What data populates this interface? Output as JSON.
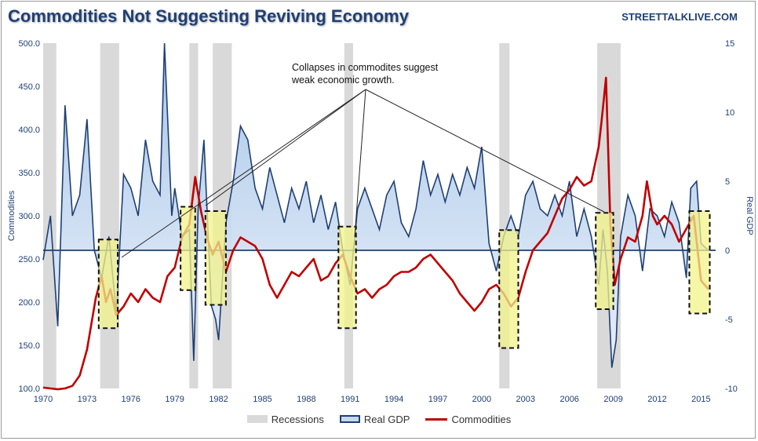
{
  "title": "Commodities Not Suggesting Reviving Economy",
  "source": "STREETTALKLIVE.COM",
  "annotation": {
    "line1": "Collapses in commodites suggest",
    "line2": "weak economic growth."
  },
  "legend": {
    "recessions": "Recessions",
    "real_gdp": "Real GDP",
    "commodities": "Commodities"
  },
  "colors": {
    "recession": "#d9d9d9",
    "gdp_line": "#1f3f73",
    "gdp_fill": "#c6d9ef",
    "commodities": "#c00000",
    "highlight_fill": "#f3f38a",
    "highlight_line": "#e0a800",
    "axis_text": "#1f3f73"
  },
  "chart_data": {
    "type": "line",
    "title": "Commodities Not Suggesting Reviving Economy",
    "xlabel": "",
    "ylabel_left": "Commodities",
    "ylabel_right": "Real GDP",
    "x_range": [
      1970,
      2016
    ],
    "y_left_range": [
      100,
      500
    ],
    "y_right_range": [
      -10,
      15
    ],
    "x_ticks": [
      "1970",
      "1973",
      "1976",
      "1979",
      "1982",
      "1985",
      "1988",
      "1991",
      "1994",
      "1997",
      "2000",
      "2003",
      "2006",
      "2009",
      "2012",
      "2015"
    ],
    "y_left_ticks": [
      "100.0",
      "150.0",
      "200.0",
      "250.0",
      "300.0",
      "350.0",
      "400.0",
      "450.0",
      "500.0"
    ],
    "y_right_ticks": [
      "-10",
      "-5",
      "0",
      "5",
      "10",
      "15"
    ],
    "recessions": [
      [
        1970.0,
        1970.9
      ],
      [
        1973.9,
        1975.2
      ],
      [
        1980.0,
        1980.6
      ],
      [
        1981.6,
        1982.9
      ],
      [
        1990.6,
        1991.2
      ],
      [
        2001.2,
        2001.9
      ],
      [
        2007.9,
        2009.5
      ]
    ],
    "highlight_periods": [
      [
        1973.8,
        1975.1
      ],
      [
        1979.4,
        1980.4
      ],
      [
        1981.1,
        1982.5
      ],
      [
        1990.2,
        1991.4
      ],
      [
        2001.2,
        2002.5
      ],
      [
        2007.8,
        2009.0
      ],
      [
        2014.2,
        2015.6
      ]
    ],
    "series": [
      {
        "name": "Real GDP",
        "axis": "right",
        "x": [
          1970.0,
          1970.5,
          1971.0,
          1971.5,
          1972.0,
          1972.5,
          1973.0,
          1973.5,
          1974.0,
          1974.5,
          1975.0,
          1975.5,
          1976.0,
          1976.5,
          1977.0,
          1977.5,
          1978.0,
          1978.3,
          1978.8,
          1979.0,
          1979.5,
          1980.0,
          1980.3,
          1980.6,
          1981.0,
          1981.5,
          1981.8,
          1982.0,
          1982.5,
          1983.0,
          1983.5,
          1984.0,
          1984.5,
          1985.0,
          1985.5,
          1986.0,
          1986.5,
          1987.0,
          1987.5,
          1988.0,
          1988.5,
          1989.0,
          1989.5,
          1990.0,
          1990.5,
          1991.0,
          1991.5,
          1992.0,
          1992.5,
          1993.0,
          1993.5,
          1994.0,
          1994.5,
          1995.0,
          1995.5,
          1996.0,
          1996.5,
          1997.0,
          1997.5,
          1998.0,
          1998.5,
          1999.0,
          1999.5,
          2000.0,
          2000.5,
          2001.0,
          2001.5,
          2002.0,
          2002.5,
          2003.0,
          2003.5,
          2004.0,
          2004.5,
          2005.0,
          2005.5,
          2006.0,
          2006.5,
          2007.0,
          2007.5,
          2008.0,
          2008.3,
          2008.6,
          2008.9,
          2009.2,
          2009.5,
          2010.0,
          2010.5,
          2011.0,
          2011.5,
          2012.0,
          2012.5,
          2013.0,
          2013.5,
          2014.0,
          2014.3,
          2014.7,
          2015.0,
          2015.5
        ],
        "values": [
          -0.7,
          2.5,
          -5.5,
          10.5,
          2.5,
          4.0,
          9.5,
          0.0,
          -2.0,
          1.0,
          -4.5,
          5.5,
          4.5,
          2.5,
          8.0,
          5.0,
          4.0,
          16.0,
          2.5,
          4.5,
          1.0,
          1.5,
          -8.0,
          3.0,
          8.0,
          -4.0,
          -5.0,
          -6.5,
          2.0,
          5.0,
          9.0,
          8.0,
          4.5,
          3.0,
          6.0,
          4.0,
          2.0,
          4.5,
          3.0,
          5.0,
          2.0,
          4.0,
          1.5,
          3.5,
          0.0,
          -2.5,
          3.0,
          4.5,
          3.0,
          1.5,
          4.0,
          5.0,
          2.0,
          1.0,
          3.0,
          6.5,
          4.0,
          5.5,
          3.5,
          5.5,
          4.0,
          6.0,
          4.5,
          7.5,
          0.5,
          -1.5,
          1.0,
          2.5,
          1.0,
          4.0,
          5.0,
          3.0,
          2.5,
          4.0,
          2.5,
          5.0,
          1.0,
          3.0,
          1.0,
          -2.5,
          1.5,
          -1.5,
          -8.5,
          -6.5,
          1.0,
          4.0,
          2.5,
          -1.5,
          3.0,
          2.5,
          1.0,
          3.5,
          2.0,
          -2.0,
          4.5,
          5.0,
          0.5,
          0.0
        ]
      },
      {
        "name": "Commodities",
        "axis": "left",
        "x": [
          1970.0,
          1970.5,
          1971.0,
          1971.5,
          1972.0,
          1972.5,
          1973.0,
          1973.3,
          1973.6,
          1974.0,
          1974.3,
          1974.6,
          1975.0,
          1975.5,
          1976.0,
          1976.5,
          1977.0,
          1977.5,
          1978.0,
          1978.5,
          1979.0,
          1979.5,
          1980.0,
          1980.4,
          1980.8,
          1981.2,
          1981.6,
          1982.0,
          1982.5,
          1983.0,
          1983.5,
          1984.0,
          1984.5,
          1985.0,
          1985.5,
          1986.0,
          1986.5,
          1987.0,
          1987.5,
          1988.0,
          1988.5,
          1989.0,
          1989.5,
          1990.0,
          1990.5,
          1991.0,
          1991.5,
          1992.0,
          1992.5,
          1993.0,
          1993.5,
          1994.0,
          1994.5,
          1995.0,
          1995.5,
          1996.0,
          1996.5,
          1997.0,
          1997.5,
          1998.0,
          1998.5,
          1999.0,
          1999.5,
          2000.0,
          2000.5,
          2001.0,
          2001.5,
          2002.0,
          2002.5,
          2003.0,
          2003.5,
          2004.0,
          2004.5,
          2005.0,
          2005.5,
          2006.0,
          2006.5,
          2007.0,
          2007.5,
          2008.0,
          2008.2,
          2008.5,
          2008.8,
          2009.1,
          2009.5,
          2010.0,
          2010.5,
          2011.0,
          2011.3,
          2011.7,
          2012.0,
          2012.5,
          2013.0,
          2013.5,
          2014.0,
          2014.5,
          2015.0,
          2015.5
        ],
        "values": [
          101,
          100,
          99,
          100,
          103,
          115,
          145,
          175,
          205,
          230,
          200,
          215,
          185,
          195,
          210,
          200,
          215,
          205,
          200,
          230,
          240,
          275,
          290,
          345,
          305,
          275,
          255,
          270,
          235,
          260,
          275,
          270,
          265,
          250,
          220,
          205,
          220,
          235,
          230,
          240,
          250,
          225,
          230,
          245,
          255,
          230,
          210,
          215,
          205,
          215,
          220,
          230,
          235,
          235,
          240,
          250,
          255,
          245,
          235,
          225,
          210,
          200,
          190,
          200,
          215,
          220,
          210,
          195,
          205,
          235,
          260,
          270,
          280,
          300,
          320,
          330,
          345,
          335,
          340,
          380,
          410,
          460,
          290,
          220,
          250,
          275,
          270,
          300,
          340,
          300,
          290,
          300,
          290,
          270,
          285,
          300,
          225,
          215
        ]
      }
    ]
  }
}
